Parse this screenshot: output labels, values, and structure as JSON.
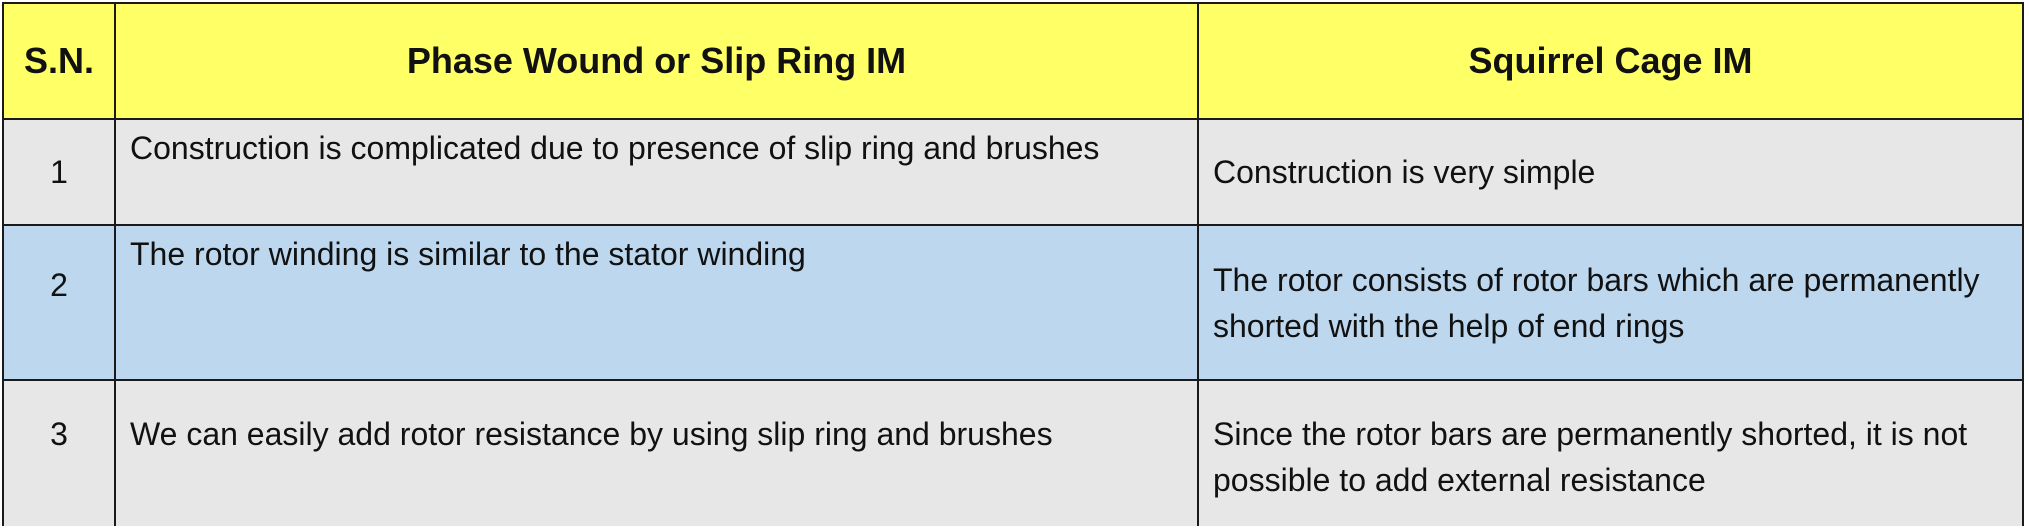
{
  "table": {
    "headers": {
      "sn": "S.N.",
      "phase_wound": "Phase Wound or Slip Ring IM",
      "squirrel_cage": "Squirrel Cage IM"
    },
    "rows": [
      {
        "sn": "1",
        "phase_wound": "Construction is complicated due to presence of slip ring and brushes",
        "squirrel_cage": "Construction is very simple",
        "background": "#e7e7e7"
      },
      {
        "sn": "2",
        "phase_wound": "The rotor winding is similar to the stator winding",
        "squirrel_cage": "The rotor consists of rotor bars which are permanently shorted with the help of end rings",
        "background": "#bdd7ee"
      },
      {
        "sn": "3",
        "phase_wound": "We can easily add rotor resistance by using slip ring and brushes",
        "squirrel_cage": "Since the rotor bars are permanently shorted, it is not possible to add external resistance",
        "background": "#e7e7e7"
      }
    ],
    "header_background": "#ffff66"
  }
}
